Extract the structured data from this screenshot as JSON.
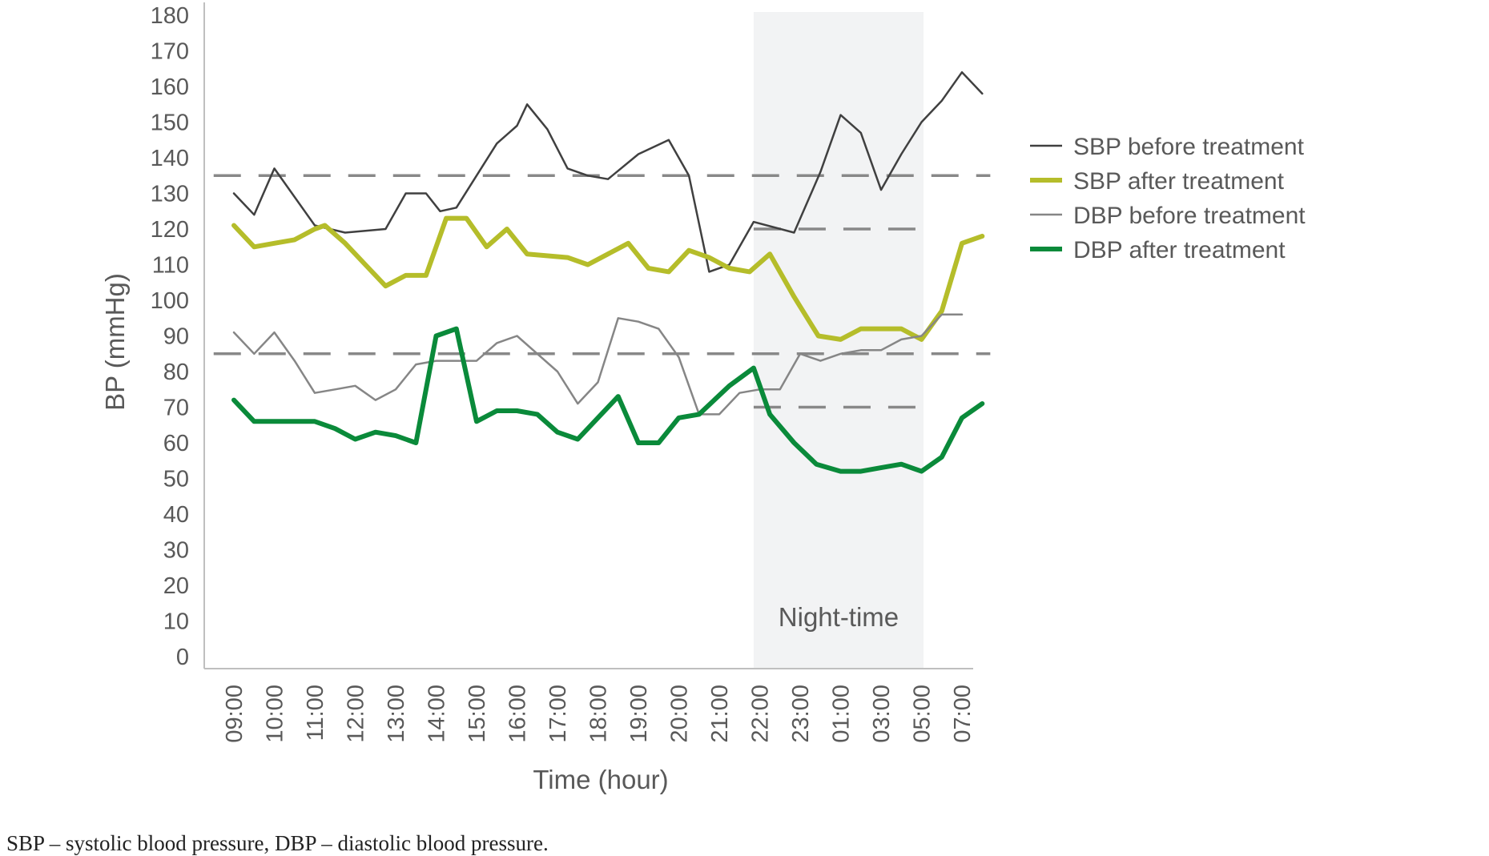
{
  "chart_data": {
    "type": "line",
    "xlabel": "Time (hour)",
    "ylabel": "BP (mmHg)",
    "ylim": [
      0,
      180
    ],
    "yticks": [
      0,
      10,
      20,
      30,
      40,
      50,
      60,
      70,
      80,
      90,
      100,
      110,
      120,
      130,
      140,
      150,
      160,
      170,
      180
    ],
    "categories": [
      "09:00",
      "10:00",
      "11:00",
      "12:00",
      "13:00",
      "14:00",
      "15:00",
      "16:00",
      "17:00",
      "18:00",
      "19:00",
      "20:00",
      "21:00",
      "22:00",
      "23:00",
      "01:00",
      "03:00",
      "05:00",
      "07:00"
    ],
    "legend_position": "right",
    "grid": false,
    "night_band": {
      "label": "Night-time",
      "from_hour": 21.85,
      "to_hour": 26.05
    },
    "reference_lines": [
      {
        "y": 135,
        "from_hour": 8.5,
        "to_hour": 27.7
      },
      {
        "y": 85,
        "from_hour": 8.5,
        "to_hour": 27.7
      },
      {
        "y": 120,
        "from_hour": 21.85,
        "to_hour": 26.05
      },
      {
        "y": 70,
        "from_hour": 21.85,
        "to_hour": 26.05
      }
    ],
    "series": [
      {
        "name": "SBP before treatment",
        "color": "#404040",
        "points": [
          [
            9.0,
            130
          ],
          [
            9.5,
            124
          ],
          [
            10.0,
            137
          ],
          [
            11.0,
            121
          ],
          [
            11.75,
            119
          ],
          [
            12.75,
            120
          ],
          [
            13.25,
            130
          ],
          [
            13.75,
            130
          ],
          [
            14.1,
            125
          ],
          [
            14.5,
            126
          ],
          [
            15.0,
            135
          ],
          [
            15.5,
            144
          ],
          [
            16.0,
            149
          ],
          [
            16.25,
            155
          ],
          [
            16.75,
            148
          ],
          [
            17.25,
            137
          ],
          [
            17.75,
            135
          ],
          [
            18.25,
            134
          ],
          [
            19.0,
            141
          ],
          [
            19.75,
            145
          ],
          [
            20.25,
            135
          ],
          [
            20.75,
            108
          ],
          [
            21.25,
            110
          ],
          [
            21.85,
            122
          ],
          [
            22.85,
            119
          ],
          [
            23.5,
            136
          ],
          [
            24.0,
            152
          ],
          [
            24.5,
            147
          ],
          [
            25.0,
            131
          ],
          [
            25.5,
            141
          ],
          [
            26.0,
            150
          ],
          [
            26.5,
            156
          ],
          [
            27.0,
            164
          ],
          [
            27.5,
            158
          ]
        ]
      },
      {
        "name": "SBP after treatment",
        "color": "#b5bd2a",
        "points": [
          [
            9.0,
            121
          ],
          [
            9.5,
            115
          ],
          [
            10.0,
            116
          ],
          [
            10.5,
            117
          ],
          [
            11.0,
            120
          ],
          [
            11.25,
            121
          ],
          [
            11.75,
            116
          ],
          [
            12.25,
            110
          ],
          [
            12.75,
            104
          ],
          [
            13.25,
            107
          ],
          [
            13.75,
            107
          ],
          [
            14.25,
            123
          ],
          [
            14.75,
            123
          ],
          [
            15.25,
            115
          ],
          [
            15.75,
            120
          ],
          [
            16.25,
            113
          ],
          [
            17.25,
            112
          ],
          [
            17.75,
            110
          ],
          [
            18.25,
            113
          ],
          [
            18.75,
            116
          ],
          [
            19.25,
            109
          ],
          [
            19.75,
            108
          ],
          [
            20.25,
            114
          ],
          [
            20.75,
            112
          ],
          [
            21.25,
            109
          ],
          [
            21.75,
            108
          ],
          [
            22.25,
            113
          ],
          [
            22.85,
            101
          ],
          [
            23.45,
            90
          ],
          [
            24.0,
            89
          ],
          [
            24.5,
            92
          ],
          [
            25.0,
            92
          ],
          [
            25.5,
            92
          ],
          [
            26.0,
            89
          ],
          [
            26.5,
            97
          ],
          [
            27.0,
            116
          ],
          [
            27.5,
            118
          ]
        ]
      },
      {
        "name": "DBP before treatment",
        "color": "#868686",
        "points": [
          [
            9.0,
            91
          ],
          [
            9.5,
            85
          ],
          [
            10.0,
            91
          ],
          [
            10.5,
            83
          ],
          [
            11.0,
            74
          ],
          [
            11.5,
            75
          ],
          [
            12.0,
            76
          ],
          [
            12.5,
            72
          ],
          [
            13.0,
            75
          ],
          [
            13.5,
            82
          ],
          [
            14.0,
            83
          ],
          [
            14.5,
            83
          ],
          [
            15.0,
            83
          ],
          [
            15.5,
            88
          ],
          [
            16.0,
            90
          ],
          [
            16.5,
            85
          ],
          [
            17.0,
            80
          ],
          [
            17.5,
            71
          ],
          [
            18.0,
            77
          ],
          [
            18.5,
            95
          ],
          [
            19.0,
            94
          ],
          [
            19.5,
            92
          ],
          [
            20.0,
            84
          ],
          [
            20.5,
            68
          ],
          [
            21.0,
            68
          ],
          [
            21.5,
            74
          ],
          [
            22.0,
            75
          ],
          [
            22.5,
            75
          ],
          [
            23.0,
            85
          ],
          [
            23.5,
            83
          ],
          [
            24.0,
            85
          ],
          [
            24.5,
            86
          ],
          [
            25.0,
            86
          ],
          [
            25.5,
            89
          ],
          [
            26.0,
            90
          ],
          [
            26.5,
            96
          ],
          [
            27.0,
            96
          ]
        ]
      },
      {
        "name": "DBP after treatment",
        "color": "#0a8a3a",
        "points": [
          [
            9.0,
            72
          ],
          [
            9.5,
            66
          ],
          [
            10.0,
            66
          ],
          [
            10.5,
            66
          ],
          [
            11.0,
            66
          ],
          [
            11.5,
            64
          ],
          [
            12.0,
            61
          ],
          [
            12.5,
            63
          ],
          [
            13.0,
            62
          ],
          [
            13.5,
            60
          ],
          [
            14.0,
            90
          ],
          [
            14.5,
            92
          ],
          [
            15.0,
            66
          ],
          [
            15.5,
            69
          ],
          [
            16.0,
            69
          ],
          [
            16.5,
            68
          ],
          [
            17.0,
            63
          ],
          [
            17.5,
            61
          ],
          [
            18.0,
            67
          ],
          [
            18.5,
            73
          ],
          [
            19.0,
            60
          ],
          [
            19.5,
            60
          ],
          [
            20.0,
            67
          ],
          [
            20.5,
            68
          ],
          [
            21.25,
            76
          ],
          [
            21.85,
            81
          ],
          [
            22.25,
            68
          ],
          [
            22.85,
            60
          ],
          [
            23.4,
            54
          ],
          [
            24.0,
            52
          ],
          [
            24.5,
            52
          ],
          [
            25.0,
            53
          ],
          [
            25.5,
            54
          ],
          [
            26.0,
            52
          ],
          [
            26.5,
            56
          ],
          [
            27.0,
            67
          ],
          [
            27.5,
            71
          ]
        ]
      }
    ]
  },
  "caption": "SBP – systolic blood pressure, DBP – diastolic blood pressure."
}
